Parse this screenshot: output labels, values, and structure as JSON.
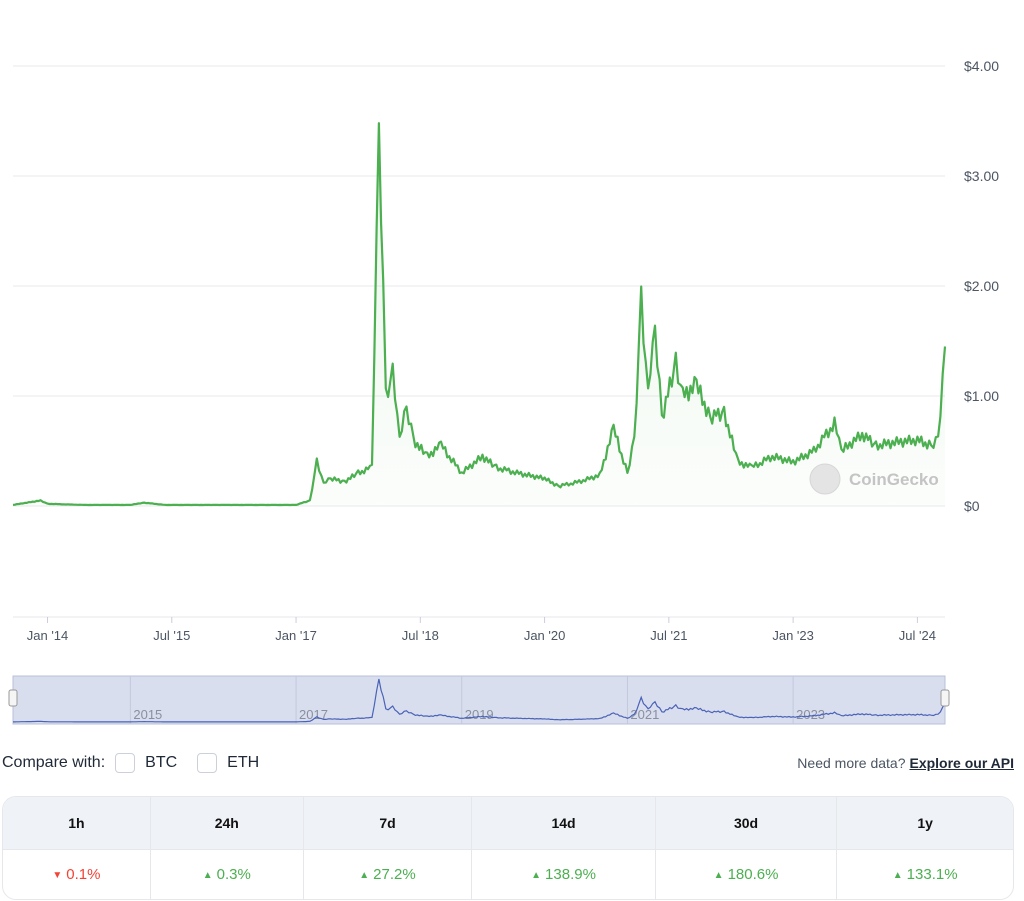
{
  "chart_data": {
    "type": "area",
    "currency": "USD",
    "y_ticks": [
      "$0",
      "$1.00",
      "$2.00",
      "$3.00",
      "$4.00"
    ],
    "ylim": [
      0,
      4
    ],
    "x_ticks": [
      "Jan '14",
      "Jul '15",
      "Jan '17",
      "Jul '18",
      "Jan '20",
      "Jul '21",
      "Jan '23",
      "Jul '24"
    ],
    "x_tick_dates": [
      "2014-01",
      "2015-07",
      "2017-01",
      "2018-07",
      "2020-01",
      "2021-07",
      "2023-01",
      "2024-07"
    ],
    "xlim": [
      "2013-08",
      "2024-11"
    ],
    "grid": true,
    "line_color": "#4caf50",
    "navigator_color": "#4a62b8",
    "watermark": "CoinGecko",
    "navigator_labels": [
      "2015",
      "2017",
      "2019",
      "2021",
      "2023"
    ],
    "series": [
      {
        "dates": [
          "2013-08",
          "2013-12",
          "2014-01",
          "2014-06",
          "2015-01",
          "2015-03",
          "2015-06",
          "2016-01",
          "2016-06",
          "2017-01",
          "2017-03",
          "2017-04",
          "2017-05",
          "2017-06",
          "2017-08",
          "2017-10",
          "2017-12",
          "2018-01",
          "2018-01-20",
          "2018-02",
          "2018-03",
          "2018-04",
          "2018-05",
          "2018-06",
          "2018-08",
          "2018-10",
          "2019-01",
          "2019-04",
          "2019-06",
          "2019-09",
          "2020-01",
          "2020-03",
          "2020-06",
          "2020-09",
          "2020-11",
          "2021-01",
          "2021-02",
          "2021-03",
          "2021-04",
          "2021-05",
          "2021-06",
          "2021-08",
          "2021-09",
          "2021-11",
          "2022-01",
          "2022-03",
          "2022-05",
          "2022-07",
          "2022-10",
          "2023-01",
          "2023-04",
          "2023-07",
          "2023-08",
          "2023-11",
          "2024-01",
          "2024-04",
          "2024-07",
          "2024-09",
          "2024-10",
          "2024-11"
        ],
        "prices": [
          0.01,
          0.05,
          0.02,
          0.01,
          0.01,
          0.03,
          0.01,
          0.01,
          0.01,
          0.01,
          0.05,
          0.4,
          0.2,
          0.25,
          0.22,
          0.3,
          0.35,
          3.38,
          2.0,
          1.0,
          1.2,
          0.6,
          0.9,
          0.6,
          0.45,
          0.55,
          0.3,
          0.45,
          0.35,
          0.3,
          0.25,
          0.18,
          0.22,
          0.28,
          0.7,
          0.3,
          0.6,
          1.85,
          1.0,
          1.6,
          0.8,
          1.3,
          1.0,
          1.1,
          0.8,
          0.85,
          0.4,
          0.35,
          0.45,
          0.4,
          0.5,
          0.75,
          0.5,
          0.65,
          0.55,
          0.58,
          0.6,
          0.55,
          0.6,
          1.45
        ]
      }
    ]
  },
  "compare": {
    "label": "Compare with:",
    "options": [
      "BTC",
      "ETH"
    ]
  },
  "api": {
    "prompt": "Need more data?",
    "link": "Explore our API"
  },
  "changes": {
    "headers": [
      "1h",
      "24h",
      "7d",
      "14d",
      "30d",
      "1y"
    ],
    "values": [
      "0.1%",
      "0.3%",
      "27.2%",
      "138.9%",
      "180.6%",
      "133.1%"
    ],
    "directions": [
      "down",
      "up",
      "up",
      "up",
      "up",
      "up"
    ]
  }
}
